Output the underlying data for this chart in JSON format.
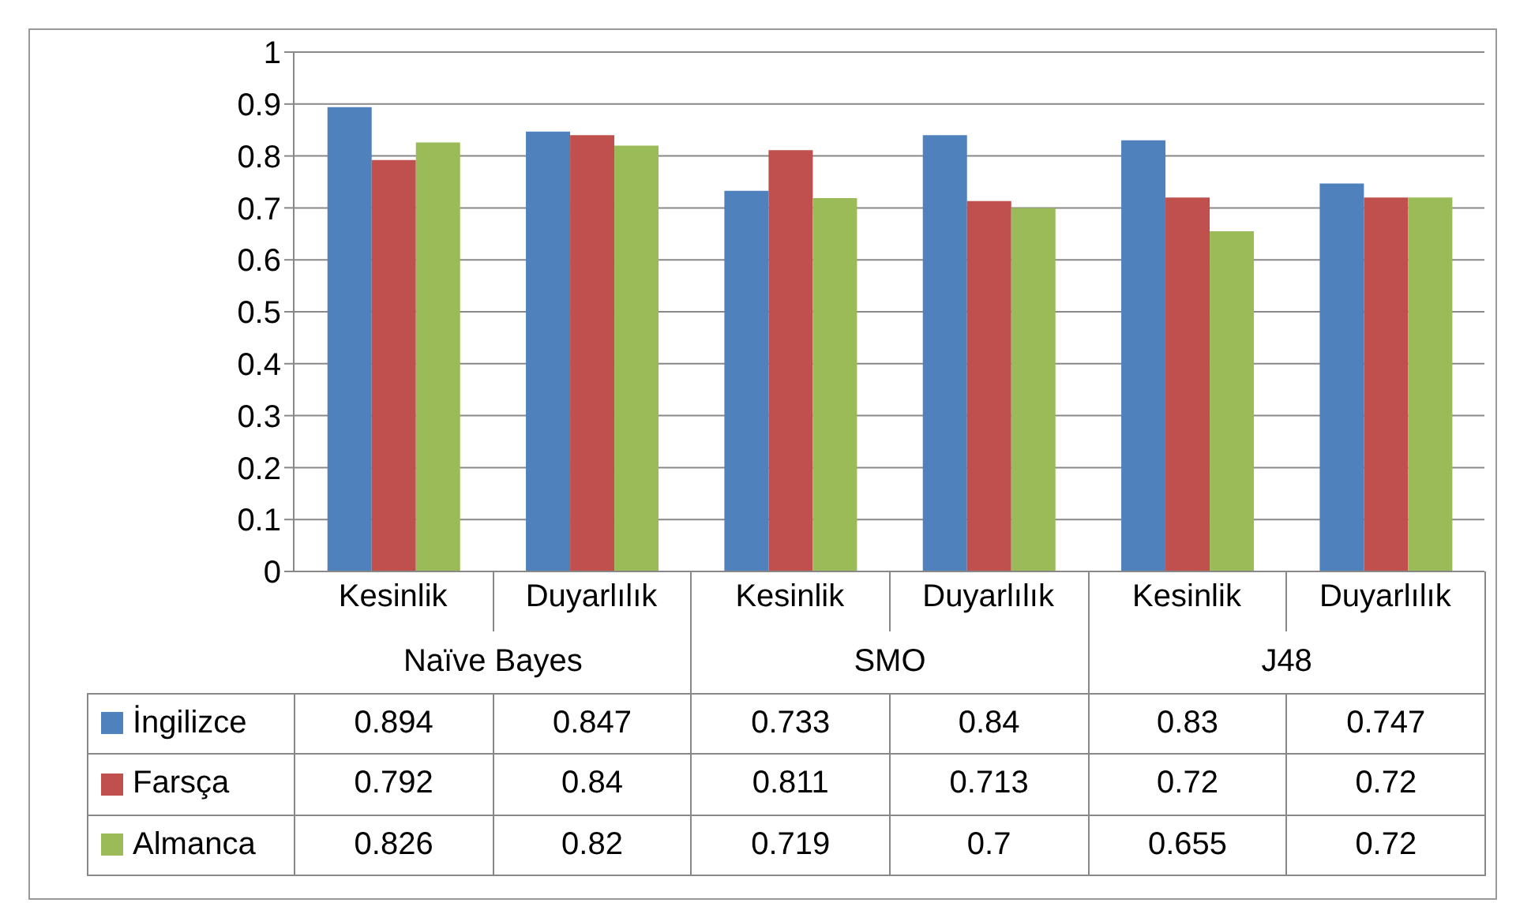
{
  "chart_data": {
    "type": "bar",
    "categories": [
      "Kesinlik",
      "Duyarlılık",
      "Kesinlik",
      "Duyarlılık",
      "Kesinlik",
      "Duyarlılık"
    ],
    "annotations": [
      "Naïve Bayes",
      "SMO",
      "J48"
    ],
    "series": [
      {
        "name": "İngilizce",
        "color": "#4f81bd",
        "values": [
          0.894,
          0.847,
          0.733,
          0.84,
          0.83,
          0.747
        ]
      },
      {
        "name": "Farsça",
        "color": "#c0504d",
        "values": [
          0.792,
          0.84,
          0.811,
          0.713,
          0.72,
          0.72
        ]
      },
      {
        "name": "Almanca",
        "color": "#9bbb59",
        "values": [
          0.826,
          0.82,
          0.719,
          0.7,
          0.655,
          0.72
        ]
      }
    ],
    "ylim": [
      0,
      1
    ],
    "yticks": [
      0,
      0.1,
      0.2,
      0.3,
      0.4,
      0.5,
      0.6,
      0.7,
      0.8,
      0.9,
      1
    ],
    "grid": "y",
    "legend": "bottom",
    "data_labels": true
  }
}
